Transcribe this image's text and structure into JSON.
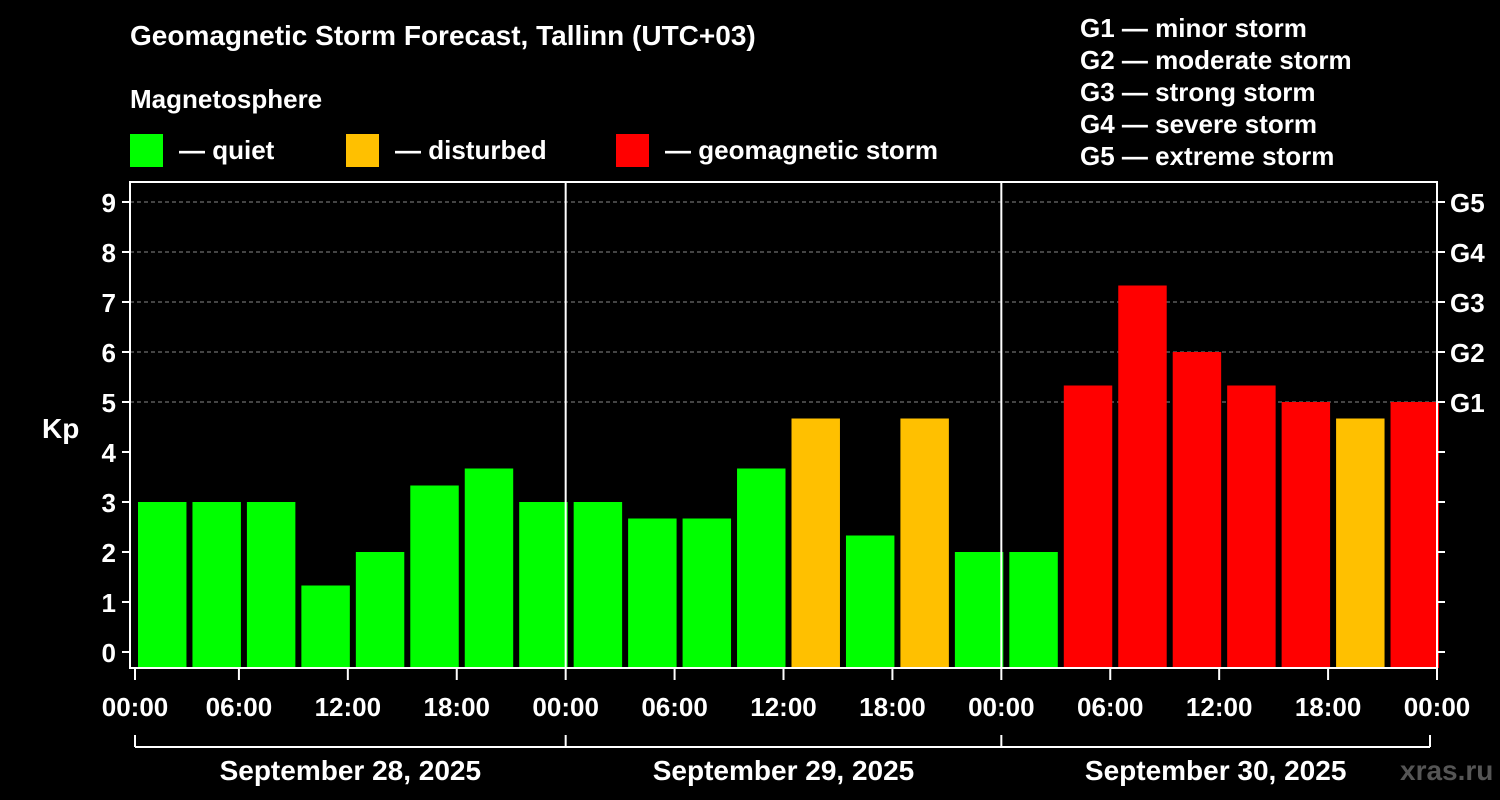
{
  "header": {
    "title": "Geomagnetic Storm Forecast, Tallinn (UTC+03)",
    "subtitle": "Magnetosphere"
  },
  "legend": [
    {
      "label": "— quiet",
      "color": "#00ff00"
    },
    {
      "label": "— disturbed",
      "color": "#ffc000"
    },
    {
      "label": "— geomagnetic storm",
      "color": "#ff0000"
    }
  ],
  "storm_scale": [
    "G1 — minor storm",
    "G2 — moderate storm",
    "G3 — strong storm",
    "G4 — severe storm",
    "G5 — extreme storm"
  ],
  "watermark": "xras.ru",
  "chart_data": {
    "type": "bar",
    "ylabel": "Kp",
    "ylim": [
      0,
      9
    ],
    "yticks": [
      "0",
      "1",
      "2",
      "3",
      "4",
      "5",
      "6",
      "7",
      "8",
      "9"
    ],
    "right_axis": [
      {
        "kp": 5,
        "label": "G1"
      },
      {
        "kp": 6,
        "label": "G2"
      },
      {
        "kp": 7,
        "label": "G3"
      },
      {
        "kp": 8,
        "label": "G4"
      },
      {
        "kp": 9,
        "label": "G5"
      }
    ],
    "xticks": [
      "00:00",
      "06:00",
      "12:00",
      "18:00",
      "00:00",
      "06:00",
      "12:00",
      "18:00",
      "00:00",
      "06:00",
      "12:00",
      "18:00",
      "00:00"
    ],
    "days": [
      "September 28, 2025",
      "September 29, 2025",
      "September 30, 2025"
    ],
    "interval_hours": 3,
    "values": [
      3.0,
      3.0,
      3.0,
      1.33,
      2.0,
      3.33,
      3.67,
      3.0,
      3.0,
      2.67,
      2.67,
      3.67,
      4.67,
      2.33,
      4.67,
      2.0,
      2.0,
      5.33,
      7.33,
      6.0,
      5.33,
      5.0,
      4.67,
      5.0
    ],
    "levels": [
      "quiet",
      "quiet",
      "quiet",
      "quiet",
      "quiet",
      "quiet",
      "quiet",
      "quiet",
      "quiet",
      "quiet",
      "quiet",
      "quiet",
      "disturbed",
      "quiet",
      "disturbed",
      "quiet",
      "quiet",
      "storm",
      "storm",
      "storm",
      "storm",
      "storm",
      "disturbed",
      "storm"
    ],
    "level_colors": {
      "quiet": "#00ff00",
      "disturbed": "#ffc000",
      "storm": "#ff0000"
    },
    "grid": true
  }
}
